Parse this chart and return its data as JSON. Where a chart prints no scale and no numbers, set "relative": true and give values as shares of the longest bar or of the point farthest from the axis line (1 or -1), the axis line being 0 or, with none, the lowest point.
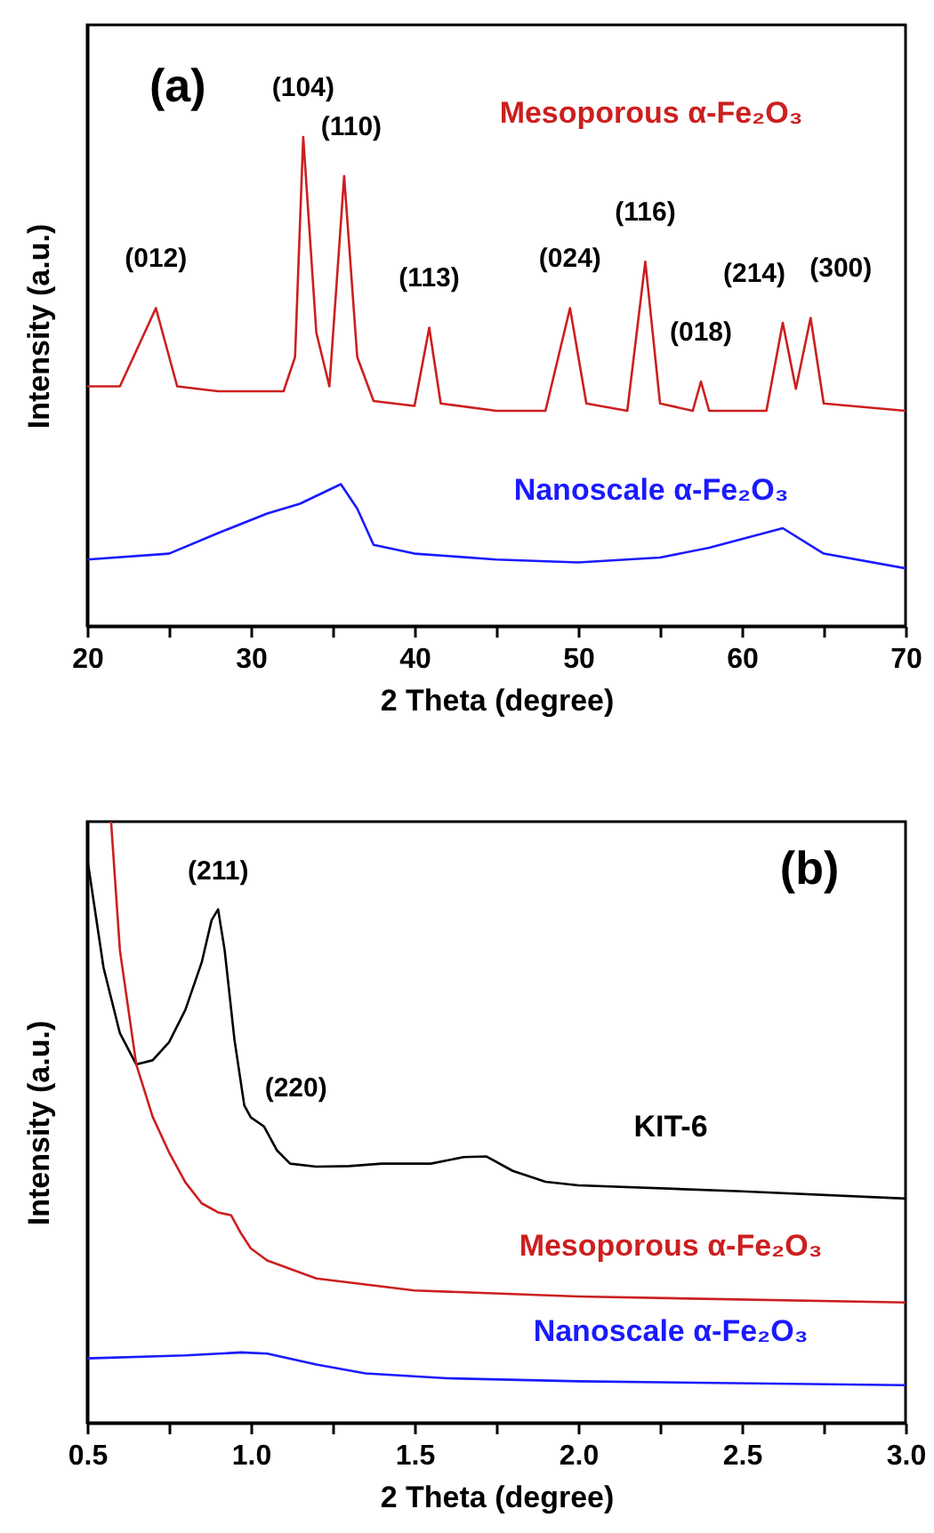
{
  "chart_data": [
    {
      "type": "line",
      "xlabel": "2 Theta (degree)",
      "ylabel": "Intensity (a.u.)",
      "relative": true,
      "tick_labels": "x",
      "legend": false,
      "xlim": [
        20,
        70
      ],
      "xticks": [
        20,
        {
          "value": 25,
          "label": null
        },
        30,
        {
          "value": 35,
          "label": null
        },
        40,
        {
          "value": 45,
          "label": null
        },
        50,
        {
          "value": 55,
          "label": null
        },
        60,
        {
          "value": 65,
          "label": null
        },
        70
      ],
      "series": [
        {
          "name": "Mesoporous α-Fe₂O₃",
          "color": "#cc1f1f",
          "x": [
            20,
            22,
            24.2,
            25.5,
            28,
            32,
            32.7,
            33.2,
            34,
            34.8,
            35.7,
            36.5,
            37.5,
            40,
            40.9,
            41.6,
            45,
            48,
            49.5,
            50.5,
            53,
            54.1,
            55,
            57,
            57.5,
            58,
            61.5,
            62.5,
            63.3,
            64.2,
            65,
            70
          ],
          "values": [
            0.49,
            0.49,
            0.65,
            0.49,
            0.48,
            0.48,
            0.55,
            1.0,
            0.6,
            0.49,
            0.92,
            0.55,
            0.46,
            0.45,
            0.61,
            0.455,
            0.44,
            0.44,
            0.65,
            0.455,
            0.44,
            0.745,
            0.455,
            0.44,
            0.5,
            0.44,
            0.44,
            0.62,
            0.485,
            0.63,
            0.455,
            0.44
          ]
        },
        {
          "name": "Nanoscale α-Fe₂O₃",
          "color": "#1a1aff",
          "x": [
            20,
            25,
            28,
            31,
            33,
            35.5,
            36.5,
            37.5,
            40,
            45,
            50,
            55,
            58,
            62.5,
            65,
            70
          ],
          "values": [
            0.136,
            0.148,
            0.19,
            0.23,
            0.25,
            0.29,
            0.24,
            0.166,
            0.148,
            0.136,
            0.13,
            0.14,
            0.16,
            0.2,
            0.148,
            0.118
          ]
        }
      ],
      "annotations": [
        "(a)",
        {
          "text": "(012)",
          "x": 24.2,
          "y": 0.65
        },
        {
          "text": "(104)",
          "x": 33.2,
          "y": 1.0
        },
        {
          "text": "(110)",
          "x": 35.7,
          "y": 0.92
        },
        {
          "text": "(113)",
          "x": 40.9,
          "y": 0.61
        },
        {
          "text": "(024)",
          "x": 49.5,
          "y": 0.65
        },
        {
          "text": "(116)",
          "x": 54.1,
          "y": 0.745
        },
        {
          "text": "(018)",
          "x": 57.5,
          "y": 0.5
        },
        {
          "text": "(214)",
          "x": 62.5,
          "y": 0.62
        },
        {
          "text": "(300)",
          "x": 64.2,
          "y": 0.63
        }
      ]
    },
    {
      "type": "line",
      "xlabel": "2 Theta (degree)",
      "ylabel": "Intensity (a.u.)",
      "relative": true,
      "tick_labels": "x",
      "legend": false,
      "xlim": [
        0.5,
        3.0
      ],
      "xticks": [
        {
          "value": 0.5,
          "label": "0.5"
        },
        {
          "value": 0.75,
          "label": null
        },
        {
          "value": 1.0,
          "label": "1.0"
        },
        {
          "value": 1.25,
          "label": null
        },
        1.5,
        {
          "value": 1.75,
          "label": null
        },
        {
          "value": 2.0,
          "label": "2.0"
        },
        {
          "value": 2.25,
          "label": null
        },
        2.5,
        {
          "value": 2.75,
          "label": null
        },
        {
          "value": 3.0,
          "label": "3.0"
        }
      ],
      "series": [
        {
          "name": "KIT-6",
          "color": "#000000",
          "x": [
            0.5,
            0.55,
            0.6,
            0.65,
            0.7,
            0.75,
            0.8,
            0.85,
            0.88,
            0.9,
            0.92,
            0.95,
            0.98,
            1.0,
            1.04,
            1.08,
            1.12,
            1.2,
            1.3,
            1.4,
            1.55,
            1.65,
            1.72,
            1.8,
            1.9,
            2.0,
            2.5,
            3.0
          ],
          "values": [
            0.94,
            0.757,
            0.648,
            0.596,
            0.603,
            0.633,
            0.687,
            0.766,
            0.836,
            0.854,
            0.786,
            0.637,
            0.528,
            0.508,
            0.493,
            0.453,
            0.431,
            0.426,
            0.427,
            0.431,
            0.431,
            0.442,
            0.443,
            0.419,
            0.401,
            0.395,
            0.385,
            0.373
          ]
        },
        {
          "name": "Mesoporous α-Fe₂O₃",
          "color": "#cc1f1f",
          "x": [
            0.573,
            0.6,
            0.65,
            0.7,
            0.75,
            0.8,
            0.85,
            0.9,
            0.94,
            0.97,
            1.0,
            1.05,
            1.2,
            1.5,
            2.0,
            3.0
          ],
          "values": [
            1.0,
            0.786,
            0.596,
            0.509,
            0.45,
            0.4,
            0.365,
            0.35,
            0.345,
            0.315,
            0.29,
            0.27,
            0.24,
            0.22,
            0.21,
            0.2
          ]
        },
        {
          "name": "Nanoscale α-Fe₂O₃",
          "color": "#1a1aff",
          "x": [
            0.5,
            0.8,
            0.97,
            1.05,
            1.2,
            1.35,
            1.6,
            2.0,
            3.0
          ],
          "values": [
            0.107,
            0.112,
            0.117,
            0.115,
            0.097,
            0.082,
            0.074,
            0.069,
            0.0625
          ]
        }
      ],
      "annotations": [
        "(b)",
        {
          "text": "(211)",
          "x": 0.9,
          "y": 0.854
        },
        {
          "text": "(220)",
          "x": 1.04,
          "y": 0.493
        }
      ]
    }
  ]
}
